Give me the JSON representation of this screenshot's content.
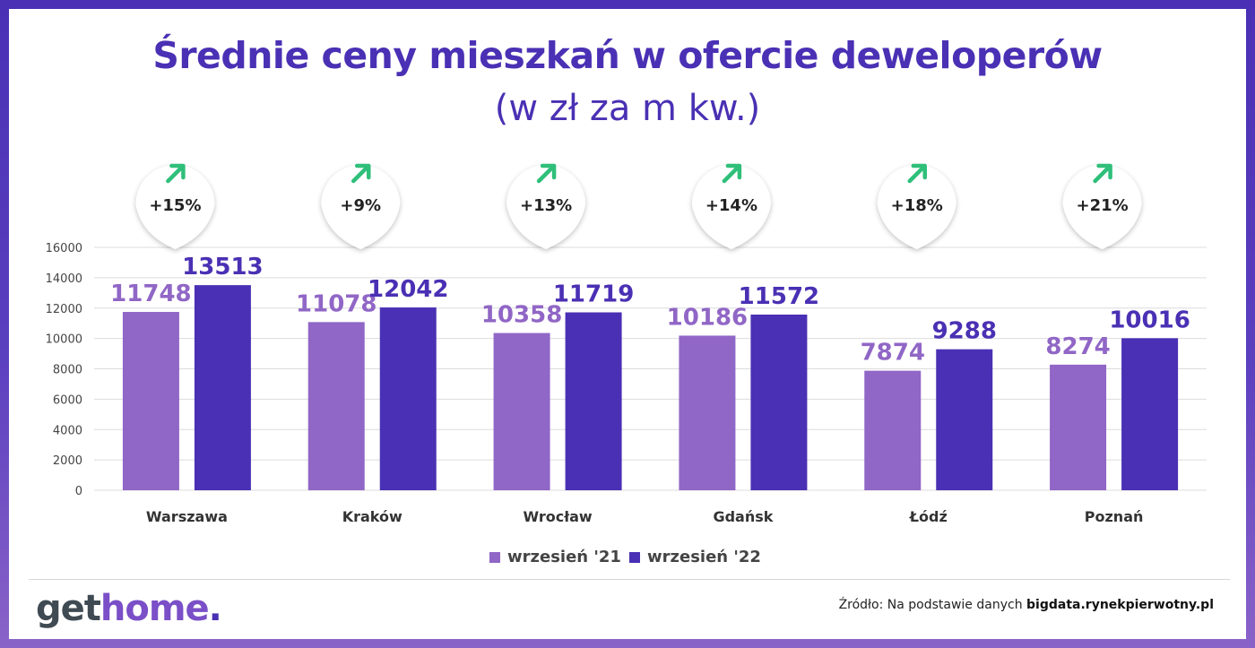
{
  "header": {
    "title": "Średnie ceny mieszkań w ofercie deweloperów",
    "subtitle": "(w zł za m kw.)"
  },
  "chart_data": {
    "type": "bar",
    "categories": [
      "Warszawa",
      "Kraków",
      "Wrocław",
      "Gdańsk",
      "Łódź",
      "Poznań"
    ],
    "series": [
      {
        "name": "wrzesień '21",
        "color": "#9066c6",
        "label_color": "#9066c6",
        "values": [
          11748,
          11078,
          10358,
          10186,
          7874,
          8274
        ]
      },
      {
        "name": "wrzesień '22",
        "color": "#4a30b4",
        "label_color": "#4a30b4",
        "values": [
          13513,
          12042,
          11719,
          11572,
          9288,
          10016
        ]
      }
    ],
    "changes": [
      "+15%",
      "+9%",
      "+13%",
      "+14%",
      "+18%",
      "+21%"
    ],
    "change_icon": "arrow-up-right-icon",
    "arrow_color": "#2fbf7a",
    "ylim": [
      0,
      16000
    ],
    "yticks": [
      0,
      2000,
      4000,
      6000,
      8000,
      10000,
      12000,
      14000,
      16000
    ],
    "grid": true,
    "legend_position": "bottom-center"
  },
  "footer": {
    "logo_get": "get",
    "logo_home": "home",
    "logo_dot": ".",
    "source_prefix": "Źródło: Na podstawie danych ",
    "source_bold": "bigdata.rynekpierwotny.pl"
  }
}
